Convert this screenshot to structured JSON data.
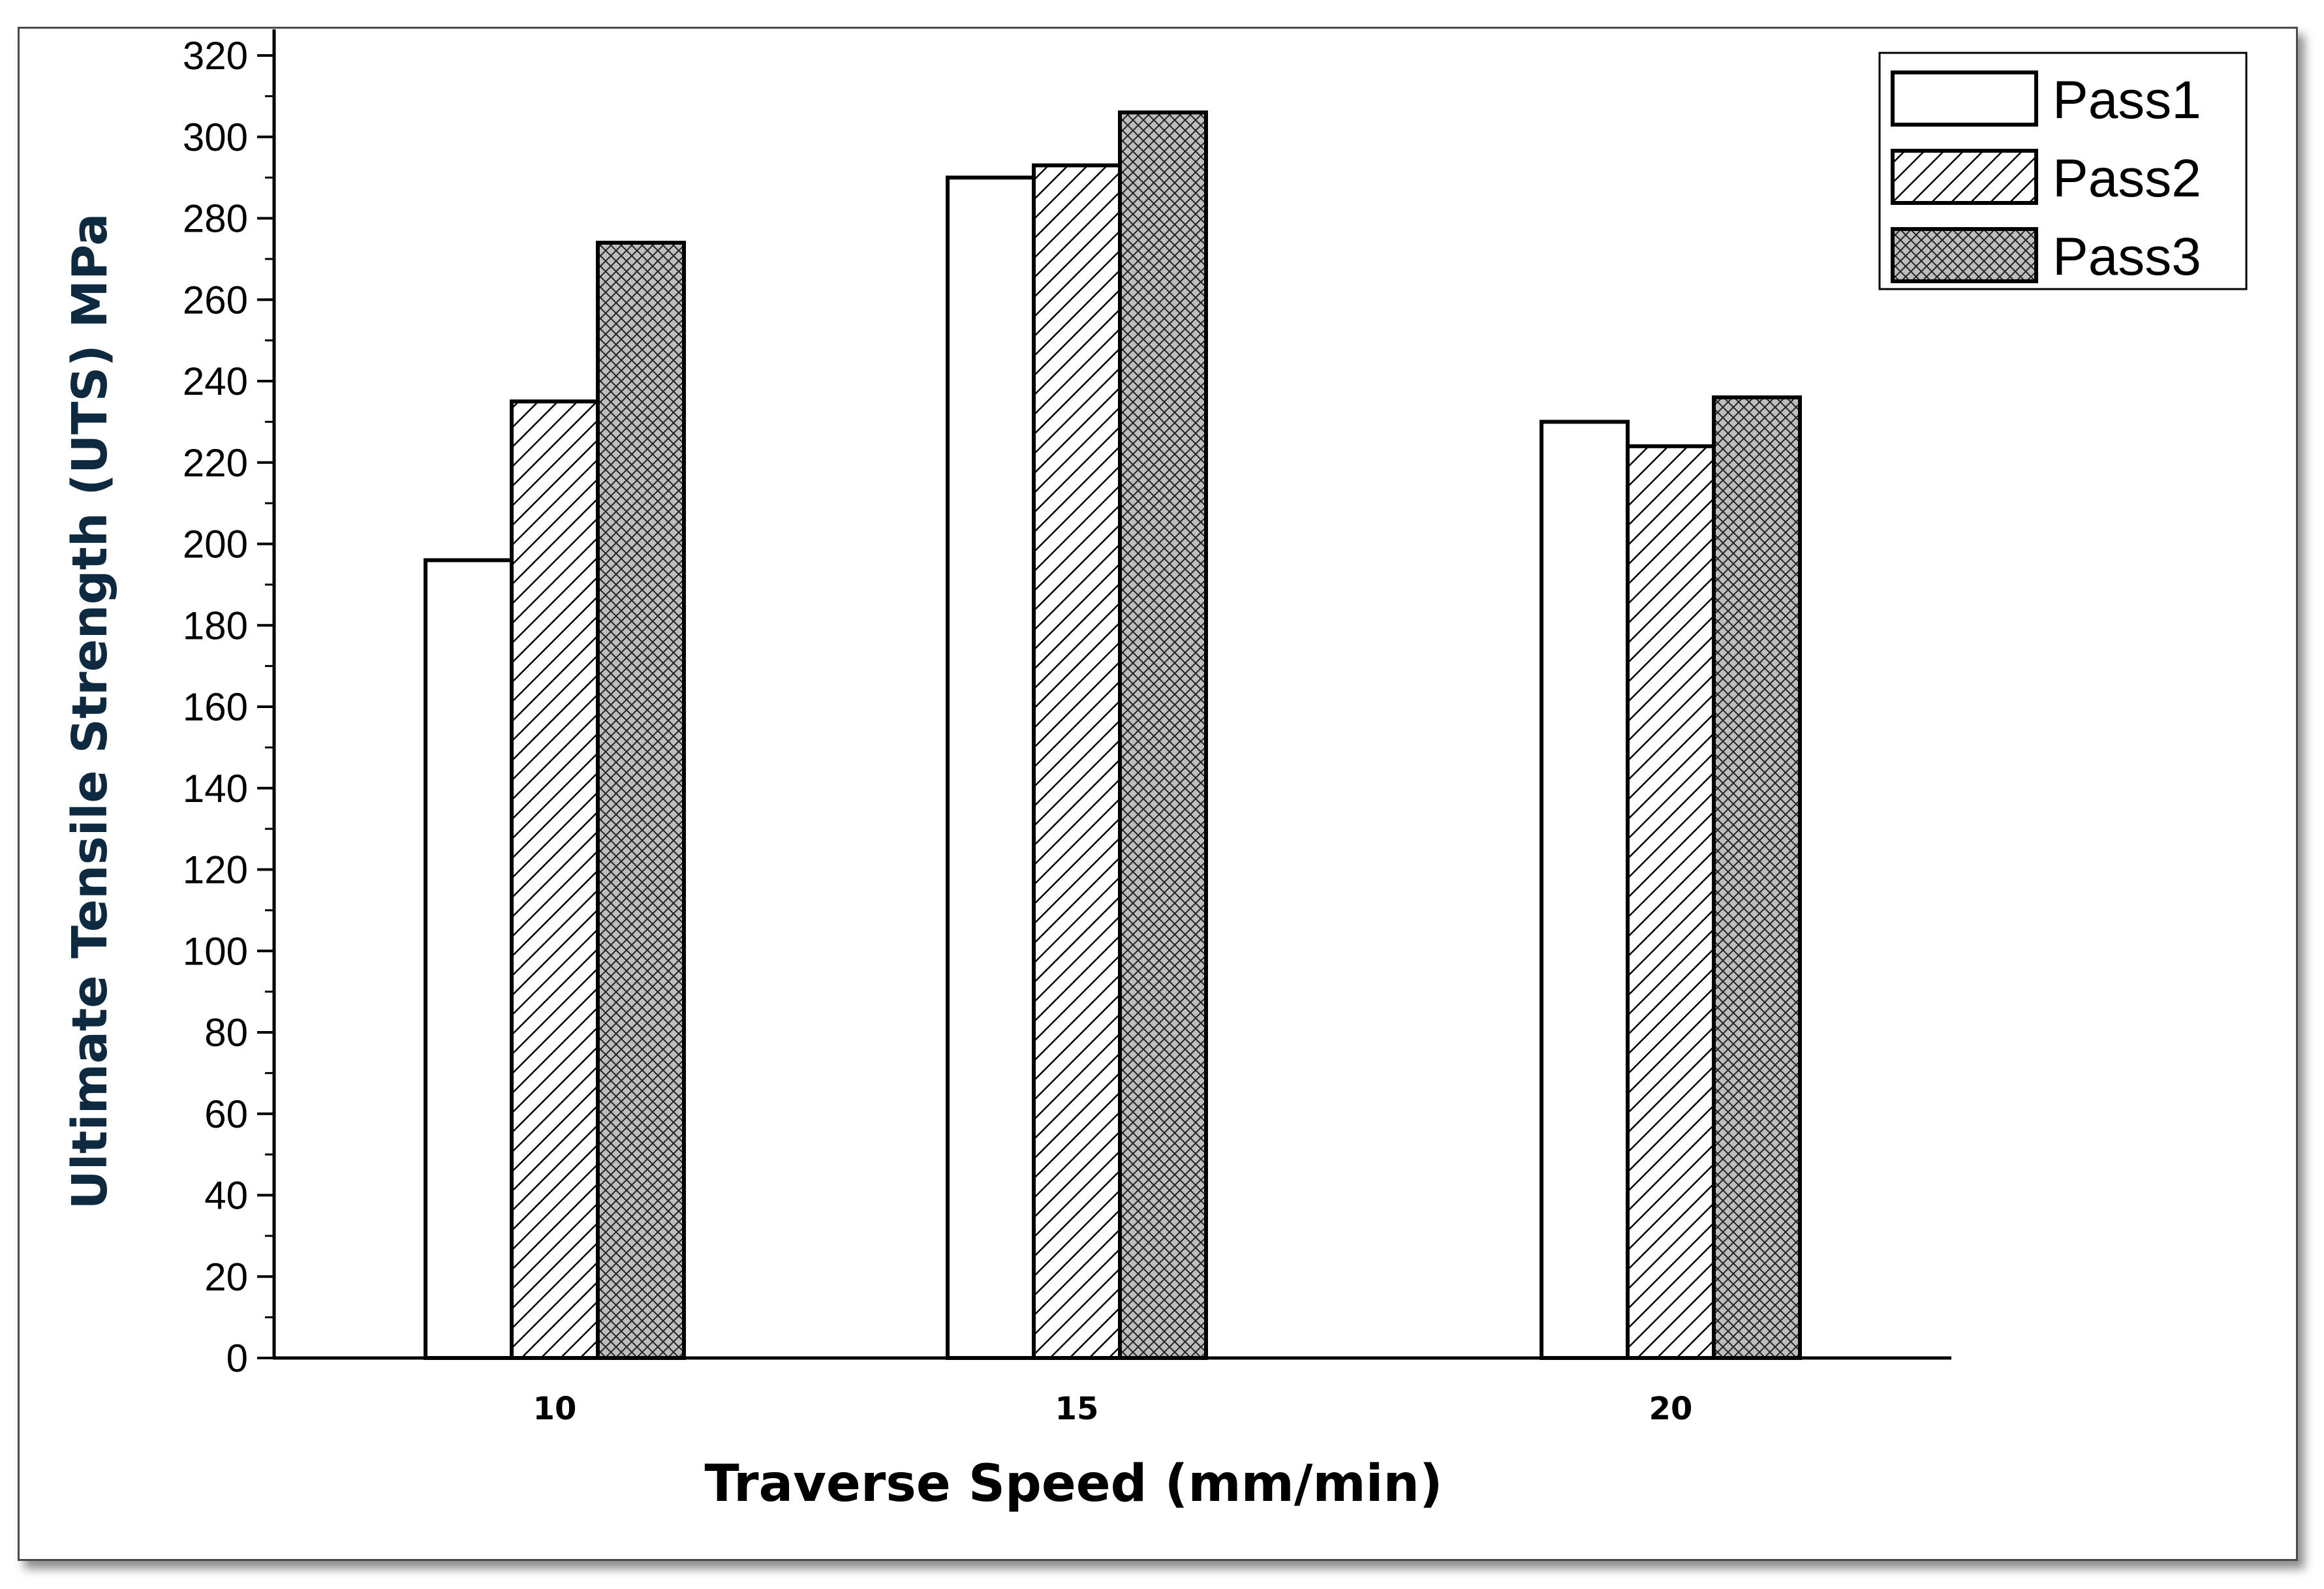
{
  "chart_data": {
    "type": "bar",
    "title": "",
    "xlabel": "Traverse Speed (mm/min)",
    "ylabel": "Ultimate Tensile Strength (UTS) MPa",
    "categories": [
      "10",
      "15",
      "20"
    ],
    "series": [
      {
        "name": "Pass1",
        "values": [
          196,
          290,
          230
        ],
        "pattern": "none"
      },
      {
        "name": "Pass2",
        "values": [
          235,
          293,
          224
        ],
        "pattern": "diagonal-hatch"
      },
      {
        "name": "Pass3",
        "values": [
          274,
          306,
          236
        ],
        "pattern": "crosshatch"
      }
    ],
    "ylim": [
      0,
      320
    ],
    "yticks": [
      0,
      20,
      40,
      60,
      80,
      100,
      120,
      140,
      160,
      180,
      200,
      220,
      240,
      260,
      280,
      300,
      320
    ],
    "legend_position": "top-right",
    "grid": false,
    "colors": {
      "bar_fill": "#ffffff",
      "pass3_fill": "#bdbdbd",
      "stroke": "#000000",
      "ylabel_color": "#0d2a40"
    }
  }
}
